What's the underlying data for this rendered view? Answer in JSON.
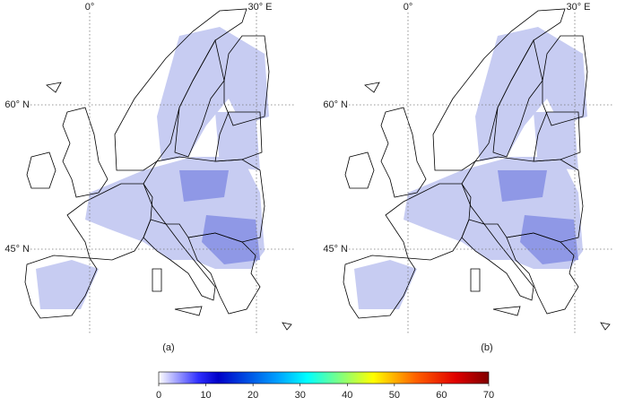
{
  "panels": [
    {
      "label": "(a)",
      "lon_labels": [
        "0°",
        "30° E"
      ],
      "lat_labels": [
        "60° N",
        "45° N"
      ]
    },
    {
      "label": "(b)",
      "lon_labels": [
        "0°",
        "30° E"
      ],
      "lat_labels": [
        "60° N",
        "45° N"
      ]
    }
  ],
  "colorbar": {
    "lim": [
      0,
      70
    ],
    "ticks": [
      0,
      10,
      20,
      30,
      40,
      50,
      60,
      70
    ]
  }
}
